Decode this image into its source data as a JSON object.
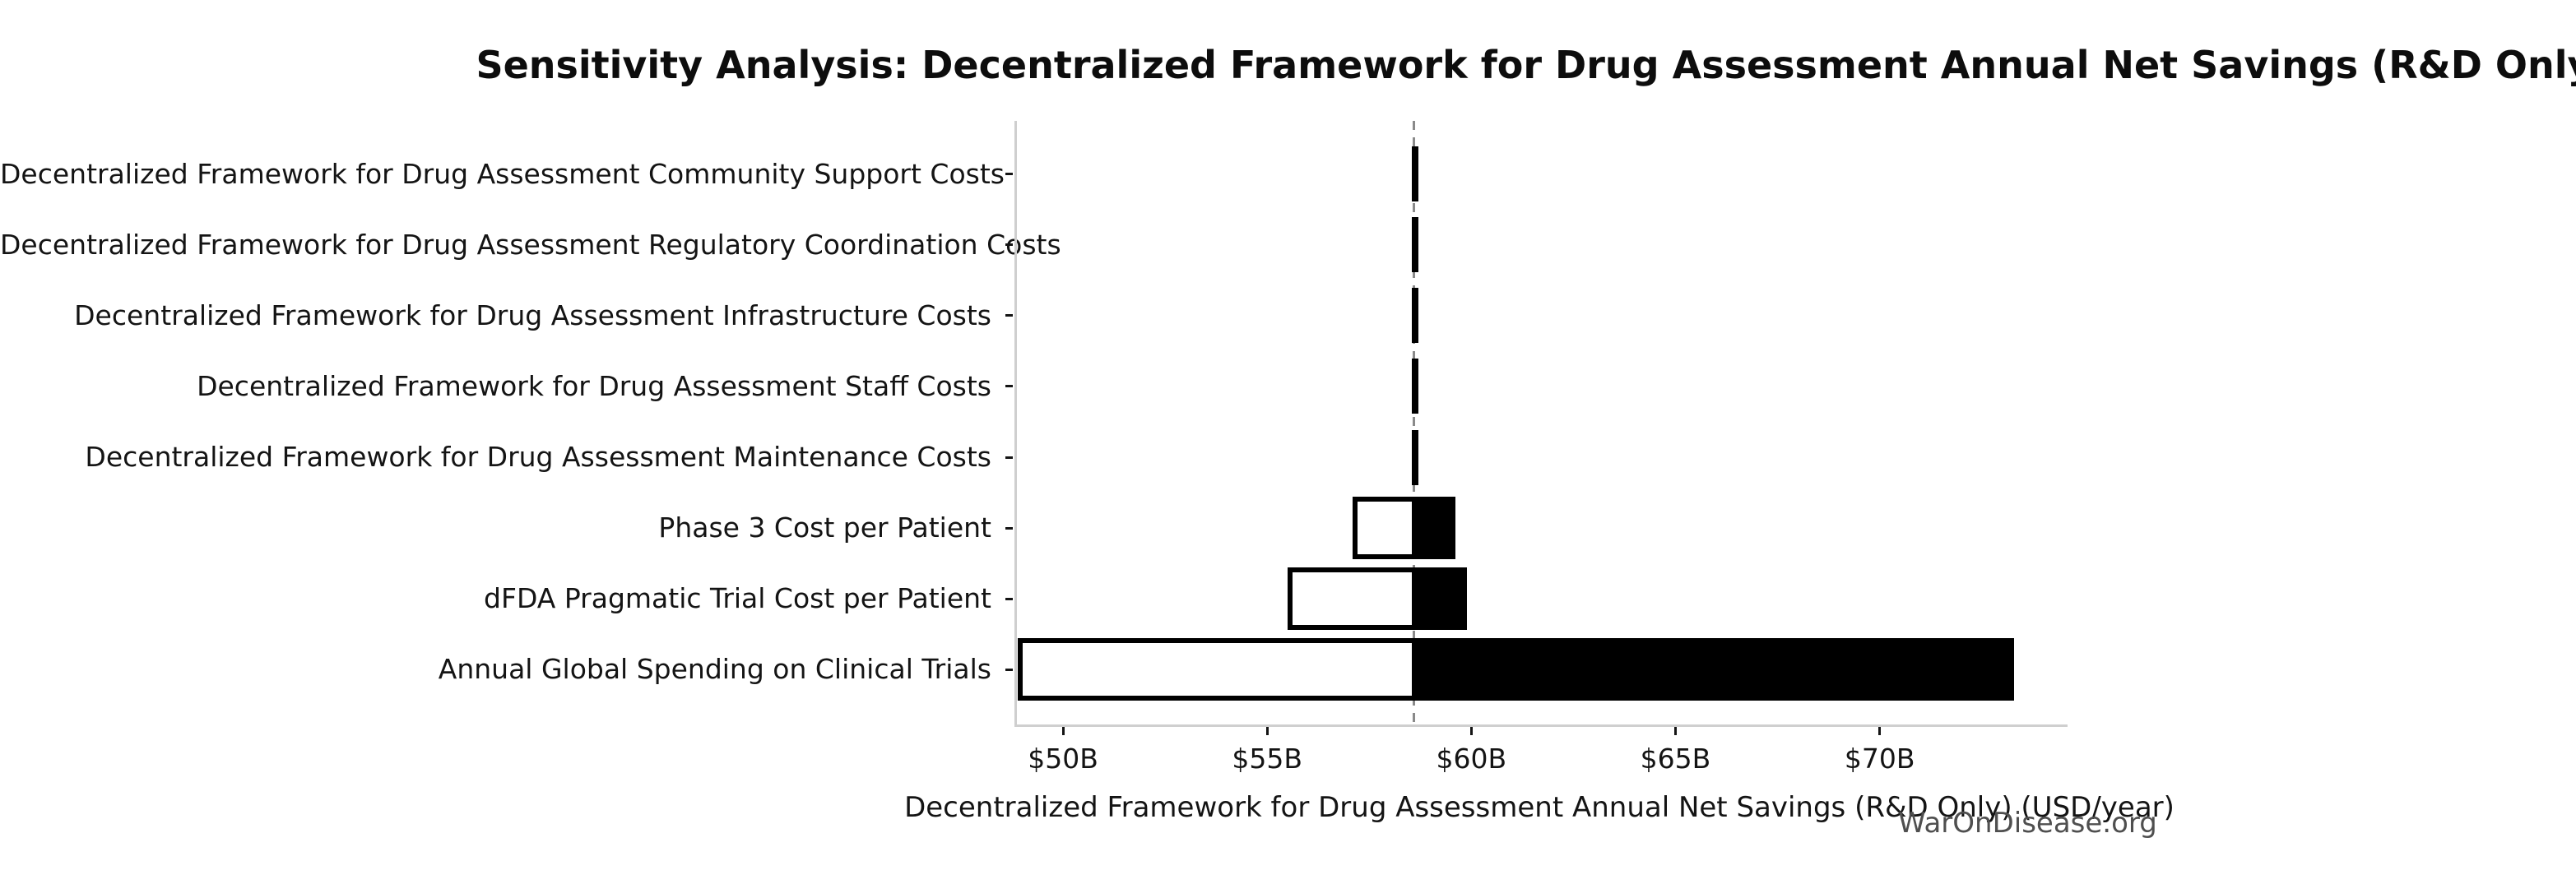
{
  "title": "Sensitivity Analysis: Decentralized Framework for Drug Assessment Annual Net Savings (R&D Only)",
  "watermark": "WarOnDisease.org",
  "x_axis": {
    "label": "Decentralized Framework for Drug Assessment Annual Net Savings (R&D Only) (USD/year)",
    "ticks": [
      {
        "label": "$50B",
        "value": 50
      },
      {
        "label": "$55B",
        "value": 55
      },
      {
        "label": "$60B",
        "value": 60
      },
      {
        "label": "$65B",
        "value": 65
      },
      {
        "label": "$70B",
        "value": 70
      }
    ]
  },
  "chart_data": {
    "type": "bar",
    "subtype": "tornado-sensitivity",
    "orientation": "horizontal",
    "unit": "USD billions per year",
    "title": "Sensitivity Analysis: Decentralized Framework for Drug Assessment Annual Net Savings (R&D Only)",
    "xlabel": "Decentralized Framework for Drug Assessment Annual Net Savings (R&D Only) (USD/year)",
    "base_value": 58.6,
    "xlim": [
      48.8,
      74.5
    ],
    "grid": false,
    "legend": false,
    "categories": [
      "Decentralized Framework for Drug Assessment Community Support Costs",
      "Decentralized Framework for Drug Assessment Regulatory Coordination Costs",
      "Decentralized Framework for Drug Assessment Infrastructure Costs",
      "Decentralized Framework for Drug Assessment Staff Costs",
      "Decentralized Framework for Drug Assessment Maintenance Costs",
      "Phase 3 Cost per Patient",
      "dFDA Pragmatic Trial Cost per Patient",
      "Annual Global Spending on Clinical Trials"
    ],
    "series": [
      {
        "name": "low",
        "values": [
          58.55,
          58.55,
          58.55,
          58.55,
          58.55,
          57.1,
          55.5,
          48.9
        ]
      },
      {
        "name": "high",
        "values": [
          58.7,
          58.7,
          58.7,
          58.7,
          58.7,
          59.6,
          59.9,
          73.3
        ]
      }
    ],
    "colors": {
      "low_fill": "#ffffff",
      "high_fill": "#000000",
      "bar_edge": "#000000",
      "baseline": "#8a8a8a",
      "spine": "#cfcfcf",
      "text": "#141414",
      "watermark_text": "#4f4f4f"
    },
    "baseline_style": "vertical dashed gray line at base value"
  }
}
